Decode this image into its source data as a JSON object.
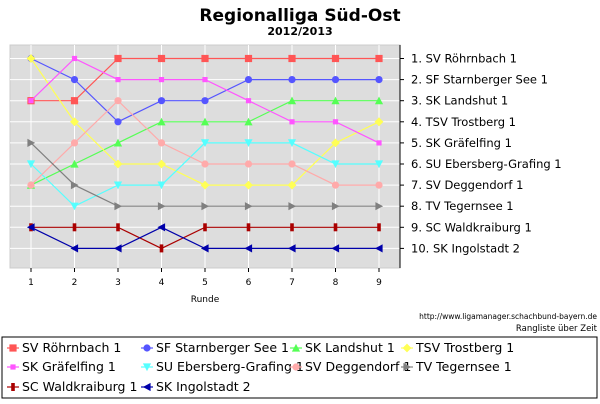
{
  "chart_data": {
    "type": "line",
    "title": "Regionalliga Süd-Ost",
    "subtitle": "2012/2013",
    "xlabel": "Runde",
    "ylabel": "",
    "x": [
      1,
      2,
      3,
      4,
      5,
      6,
      7,
      8,
      9
    ],
    "ylim": [
      1,
      10
    ],
    "y_inverted": true,
    "grid": true,
    "right_tick_labels": [
      "1. SV Röhrnbach 1",
      "2. SF Starnberger See 1",
      "3. SK Landshut 1",
      "4. TSV Trostberg 1",
      "5. SK Gräfelfing 1",
      "6. SU Ebersberg-Grafing 1",
      "7. SV Deggendorf 1",
      "8. TV Tegernsee 1",
      "9. SC Waldkraiburg 1",
      "10. SK Ingolstadt 2"
    ],
    "legend_position": "bottom",
    "series": [
      {
        "name": "SV Röhrnbach 1",
        "color": "#ff5555",
        "marker": "square",
        "values": [
          3,
          3,
          1,
          1,
          1,
          1,
          1,
          1,
          1
        ]
      },
      {
        "name": "SF Starnberger See 1",
        "color": "#5555ff",
        "marker": "circle",
        "values": [
          1,
          2,
          4,
          3,
          3,
          2,
          2,
          2,
          2
        ]
      },
      {
        "name": "SK Landshut 1",
        "color": "#55ff55",
        "marker": "triangle-up",
        "values": [
          7,
          6,
          5,
          4,
          4,
          4,
          3,
          3,
          3
        ]
      },
      {
        "name": "TSV Trostberg 1",
        "color": "#ffff55",
        "marker": "diamond",
        "values": [
          1,
          4,
          6,
          6,
          7,
          7,
          7,
          5,
          4
        ]
      },
      {
        "name": "SK Gräfelfing 1",
        "color": "#ff55ff",
        "marker": "square-small",
        "values": [
          3,
          1,
          2,
          2,
          2,
          3,
          4,
          4,
          5
        ]
      },
      {
        "name": "SU Ebersberg-Grafing 1",
        "color": "#55ffff",
        "marker": "triangle-down",
        "values": [
          6,
          8,
          7,
          7,
          5,
          5,
          5,
          6,
          6
        ]
      },
      {
        "name": "SV Deggendorf 1",
        "color": "#ffaaaa",
        "marker": "circle",
        "values": [
          7,
          5,
          3,
          5,
          6,
          6,
          6,
          7,
          7
        ]
      },
      {
        "name": "TV Tegernsee 1",
        "color": "#808080",
        "marker": "triangle-right",
        "values": [
          5,
          7,
          8,
          8,
          8,
          8,
          8,
          8,
          8
        ]
      },
      {
        "name": "SC Waldkraiburg 1",
        "color": "#aa0000",
        "marker": "bar",
        "values": [
          9,
          9,
          9,
          10,
          9,
          9,
          9,
          9,
          9
        ]
      },
      {
        "name": "SK Ingolstadt 2",
        "color": "#0000aa",
        "marker": "triangle-left",
        "values": [
          9,
          10,
          10,
          9,
          10,
          10,
          10,
          10,
          10
        ]
      }
    ]
  },
  "footer": {
    "url": "http://www.ligamanager.schachbund-bayern.de",
    "caption": "Rangliste über Zeit"
  },
  "colors": {
    "plot_background": "#dddddd",
    "grid": "#ffffff"
  }
}
